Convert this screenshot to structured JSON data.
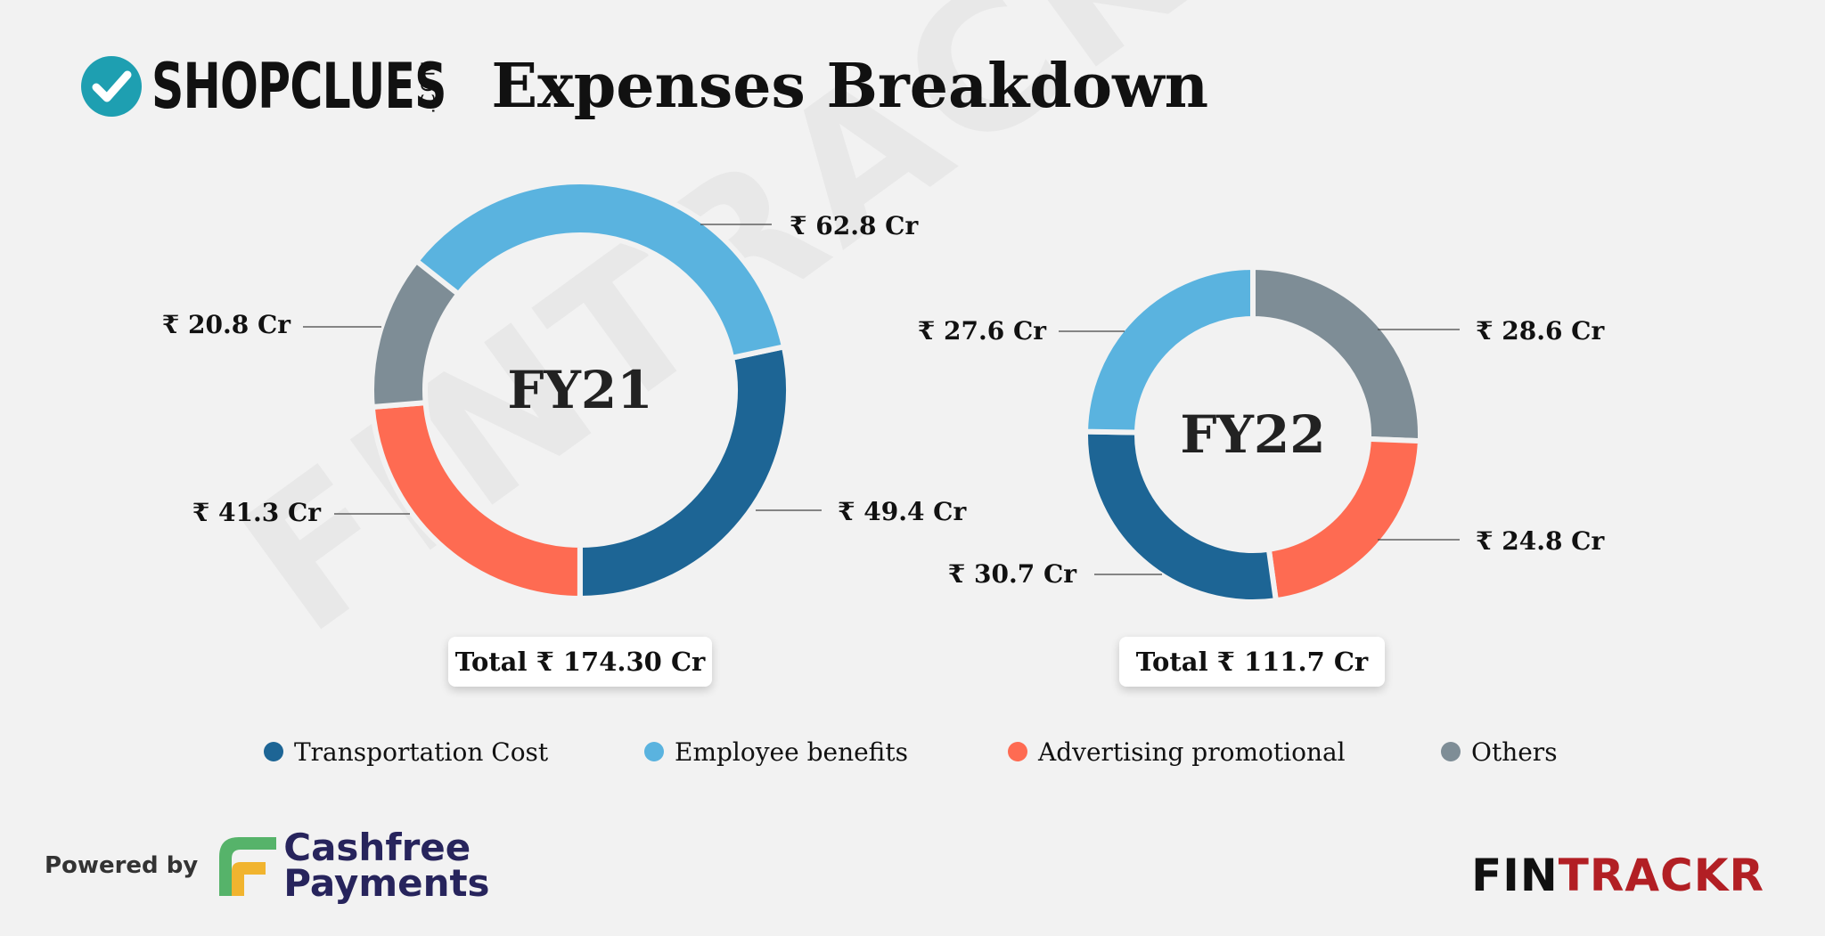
{
  "header": {
    "brand": "SHOPCLUES",
    "brand_suffix": ".COM",
    "title": "Expenses Breakdown"
  },
  "watermark": "FINTRACKR",
  "colors": {
    "transportation": "#1d6595",
    "employee": "#5ab3df",
    "advertising": "#fe6b52",
    "others": "#7e8d96",
    "background": "#f2f2f2"
  },
  "chart_data": [
    {
      "type": "donut",
      "title": "FY21",
      "total_label": "Total ₹ 174.30 Cr",
      "slices": [
        {
          "category": "Transportation Cost",
          "value": 49.4,
          "label": "₹ 49.4 Cr"
        },
        {
          "category": "Advertising promotional",
          "value": 41.3,
          "label": "₹ 41.3 Cr"
        },
        {
          "category": "Others",
          "value": 20.8,
          "label": "₹ 20.8 Cr"
        },
        {
          "category": "Employee benefits",
          "value": 62.8,
          "label": "₹ 62.8 Cr"
        }
      ]
    },
    {
      "type": "donut",
      "title": "FY22",
      "total_label": "Total ₹ 111.7 Cr",
      "slices": [
        {
          "category": "Others",
          "value": 28.6,
          "label": "₹ 28.6 Cr"
        },
        {
          "category": "Advertising promotional",
          "value": 24.8,
          "label": "₹ 24.8 Cr"
        },
        {
          "category": "Transportation Cost",
          "value": 30.7,
          "label": "₹ 30.7 Cr"
        },
        {
          "category": "Employee benefits",
          "value": 27.6,
          "label": "₹ 27.6 Cr"
        }
      ]
    }
  ],
  "legend": [
    {
      "label": "Transportation Cost",
      "color": "#1d6595"
    },
    {
      "label": "Employee benefits",
      "color": "#5ab3df"
    },
    {
      "label": "Advertising promotional",
      "color": "#fe6b52"
    },
    {
      "label": "Others",
      "color": "#7e8d96"
    }
  ],
  "footer": {
    "powered_by": "Powered by",
    "cashfree_line1": "Cashfree",
    "cashfree_line2": "Payments",
    "fintrackr_fin": "FIN",
    "fintrackr_trackr": "TRACKR"
  }
}
